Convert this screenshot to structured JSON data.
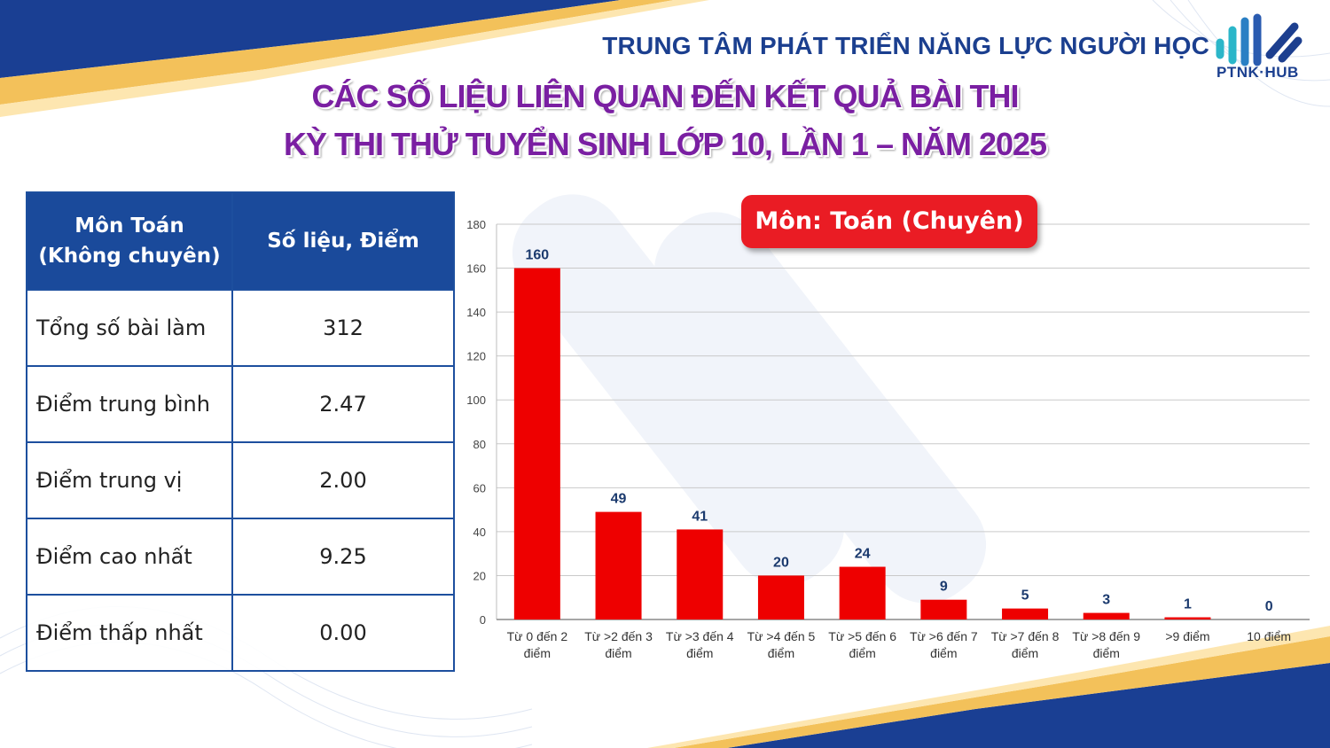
{
  "header": {
    "organization": "TRUNG TÂM PHÁT TRIỂN NĂNG LỰC NGƯỜI HỌC",
    "logo_text": "PTNK·HUB",
    "title_line1": "CÁC SỐ LIỆU LIÊN QUAN ĐẾN KẾT QUẢ BÀI THI",
    "title_line2": "KỲ THI THỬ TUYỂN SINH LỚP 10, LẦN 1 – NĂM 2025"
  },
  "stats_table": {
    "col1_line1": "Môn Toán",
    "col1_line2": "(Không chuyên)",
    "col2": "Số liệu, Điểm",
    "rows": [
      {
        "label": "Tổng số bài làm",
        "value": "312"
      },
      {
        "label": "Điểm trung bình",
        "value": "2.47"
      },
      {
        "label": "Điểm trung vị",
        "value": "2.00"
      },
      {
        "label": "Điểm cao nhất",
        "value": "9.25"
      },
      {
        "label": "Điểm thấp nhất",
        "value": "0.00"
      }
    ]
  },
  "chart_data": {
    "type": "bar",
    "title": "Môn: Toán (Chuyên)",
    "categories": [
      [
        "Từ 0 đến 2",
        "điểm"
      ],
      [
        "Từ >2 đến 3",
        "điểm"
      ],
      [
        "Từ >3 đến 4",
        "điểm"
      ],
      [
        "Từ >4 đến 5",
        "điểm"
      ],
      [
        "Từ >5 đến 6",
        "điểm"
      ],
      [
        "Từ >6 đến 7",
        "điểm"
      ],
      [
        "Từ >7 đến 8",
        "điểm"
      ],
      [
        "Từ >8 đến 9",
        "điểm"
      ],
      [
        ">9 điểm"
      ],
      [
        "10 điểm"
      ]
    ],
    "values": [
      160,
      49,
      41,
      20,
      24,
      9,
      5,
      3,
      1,
      0
    ],
    "ylim": [
      0,
      180
    ],
    "yticks": [
      0,
      20,
      40,
      60,
      80,
      100,
      120,
      140,
      160,
      180
    ],
    "grid": true,
    "bar_color": "#ee0000",
    "label_color": "#1b3a6e"
  },
  "colors": {
    "navy": "#1a4a9b",
    "title_purple": "#7a1fa2",
    "accent_red": "#ea1c24",
    "gold": "#f3c15a"
  }
}
